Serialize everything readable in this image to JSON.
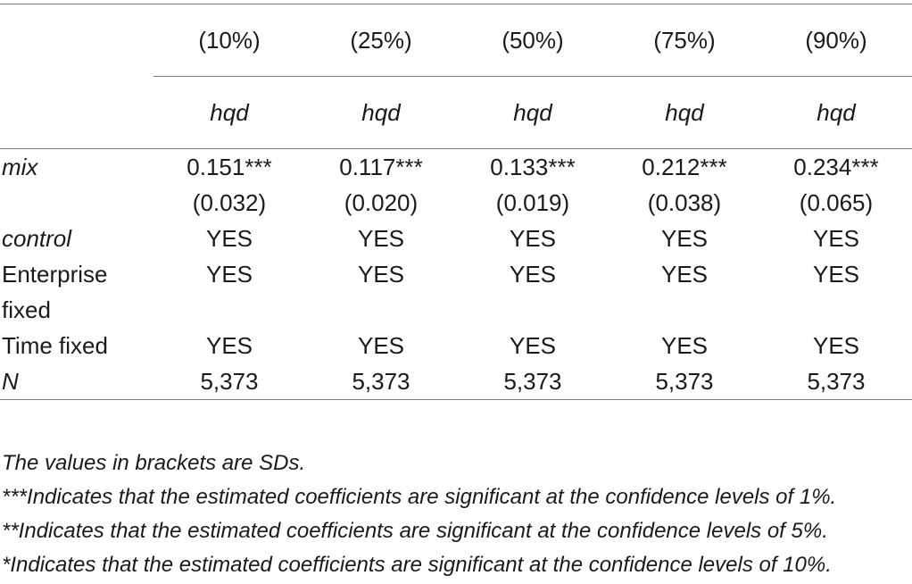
{
  "table": {
    "columns": [
      "(10%)",
      "(25%)",
      "(50%)",
      "(75%)",
      "(90%)"
    ],
    "dep_var": [
      "hqd",
      "hqd",
      "hqd",
      "hqd",
      "hqd"
    ],
    "rows": {
      "mix": {
        "label": "mix",
        "coef": [
          "0.151***",
          "0.117***",
          "0.133***",
          "0.212***",
          "0.234***"
        ],
        "se": [
          "(0.032)",
          "(0.020)",
          "(0.019)",
          "(0.038)",
          "(0.065)"
        ]
      },
      "control": {
        "label": "control",
        "values": [
          "YES",
          "YES",
          "YES",
          "YES",
          "YES"
        ]
      },
      "enterprise_fixed": {
        "label_line1": "Enterprise",
        "label_line2": "fixed",
        "values": [
          "YES",
          "YES",
          "YES",
          "YES",
          "YES"
        ]
      },
      "time_fixed": {
        "label": "Time fixed",
        "values": [
          "YES",
          "YES",
          "YES",
          "YES",
          "YES"
        ]
      },
      "n": {
        "label": "N",
        "values": [
          "5,373",
          "5,373",
          "5,373",
          "5,373",
          "5,373"
        ]
      }
    }
  },
  "notes": [
    "The values in brackets are SDs.",
    "***Indicates that the estimated coefficients are significant at the confidence levels of 1%.",
    "**Indicates that the estimated coefficients are significant at the confidence levels of 5%.",
    "*Indicates that the estimated coefficients are significant at the confidence levels of 10%."
  ]
}
